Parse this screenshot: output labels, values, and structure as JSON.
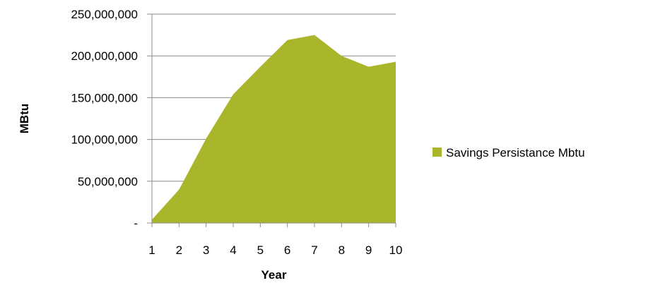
{
  "chart_data": {
    "type": "area",
    "x": [
      1,
      2,
      3,
      4,
      5,
      6,
      7,
      8,
      9,
      10
    ],
    "x_tick_labels": [
      "1",
      "2",
      "3",
      "4",
      "5",
      "6",
      "7",
      "8",
      "9",
      "10"
    ],
    "series": [
      {
        "name": "Savings Persistance Mbtu",
        "color": "#a9b52a",
        "values": [
          4000000,
          40000000,
          101000000,
          154000000,
          187000000,
          219000000,
          225000000,
          200000000,
          187000000,
          193000000
        ]
      }
    ],
    "xlabel": "Year",
    "ylabel": "MBtu",
    "ylim": [
      0,
      250000000
    ],
    "y_ticks": [
      0,
      50000000,
      100000000,
      150000000,
      200000000,
      250000000
    ],
    "y_tick_labels": [
      "-",
      "50,000,000",
      "100,000,000",
      "150,000,000",
      "200,000,000",
      "250,000,000"
    ],
    "grid": true,
    "grid_color": "#8c8c8c",
    "legend_position": "right"
  }
}
